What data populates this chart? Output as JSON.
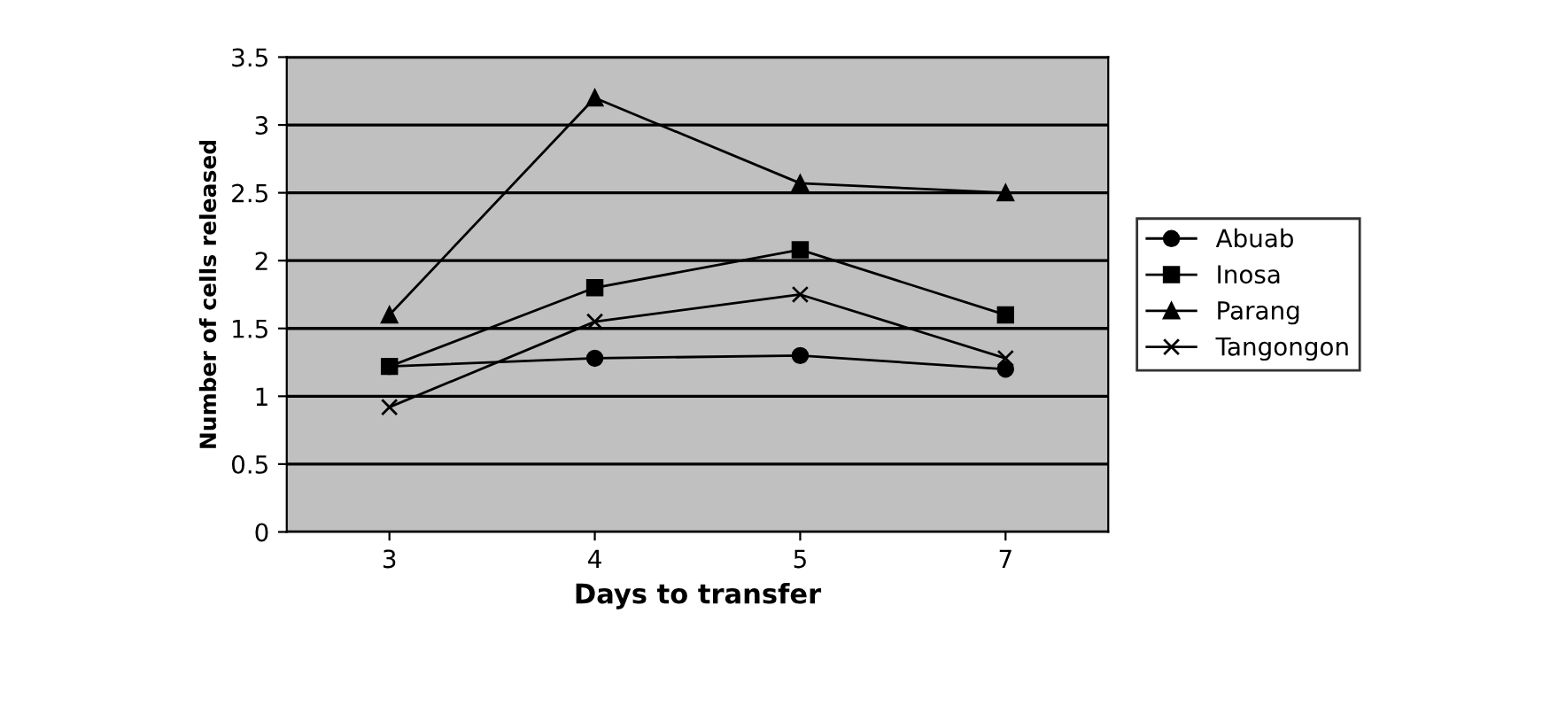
{
  "chart_data": {
    "type": "line",
    "xlabel": "Days to transfer",
    "ylabel": "Number of cells released",
    "categories": [
      "3",
      "4",
      "5",
      "7"
    ],
    "series": [
      {
        "name": "Abuab",
        "color": "#000000",
        "marker": "circle",
        "values": [
          1.22,
          1.28,
          1.3,
          1.2
        ]
      },
      {
        "name": "Inosa",
        "color": "#000000",
        "marker": "square",
        "values": [
          1.22,
          1.8,
          2.08,
          1.6
        ]
      },
      {
        "name": "Parang",
        "color": "#000000",
        "marker": "triangle",
        "values": [
          1.6,
          3.2,
          2.57,
          2.5
        ]
      },
      {
        "name": "Tangongon",
        "color": "#000000",
        "marker": "cross",
        "values": [
          0.92,
          1.55,
          1.75,
          1.28
        ]
      }
    ],
    "ylim": [
      0,
      3.5
    ],
    "yticks": [
      0,
      0.5,
      1,
      1.5,
      2,
      2.5,
      3,
      3.5
    ],
    "grid": "y",
    "legend": "right",
    "line_style": "solid"
  }
}
